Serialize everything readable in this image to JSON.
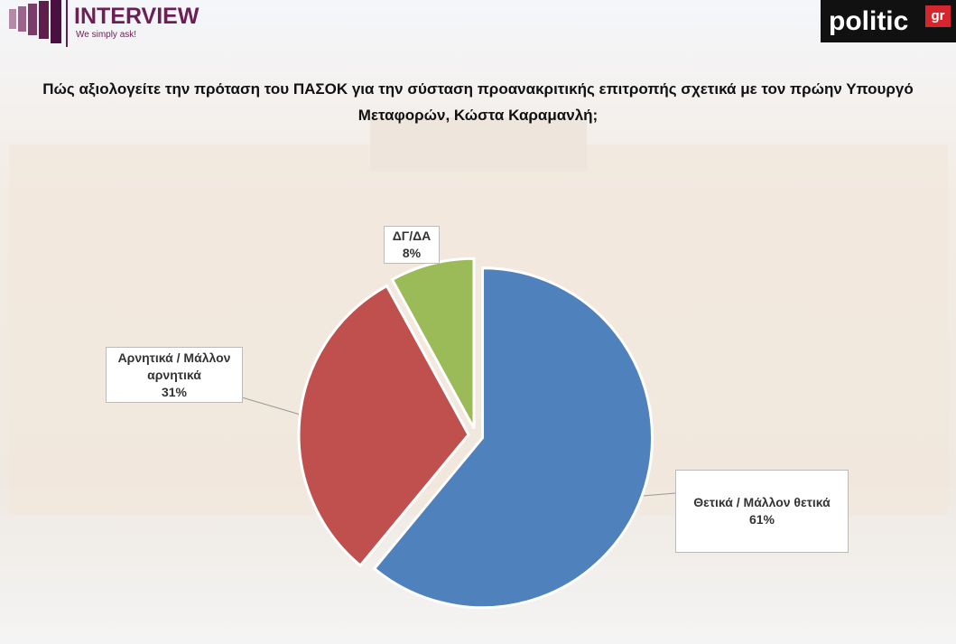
{
  "header": {
    "brand": "INTERVIEW",
    "tagline": "We simply ask!",
    "source_logo": "politic",
    "source_logo_suffix": "gr"
  },
  "chart_data": {
    "type": "pie",
    "title": "Πώς αξιολογείτε την πρόταση του ΠΑΣΟΚ για την σύσταση προανακριτικής επιτροπής σχετικά με τον πρώην Υπουργό Μεταφορών, Κώστα Καραμανλή;",
    "categories": [
      "Θετικά / Μάλλον θετικά",
      "Αρνητικά / Μάλλον αρνητικά",
      "ΔΓ/ΔΑ"
    ],
    "values": [
      61,
      31,
      8
    ],
    "value_labels": [
      "61%",
      "31%",
      "8%"
    ],
    "colors": [
      "#4f81bd",
      "#c0504d",
      "#9bbb59"
    ]
  }
}
